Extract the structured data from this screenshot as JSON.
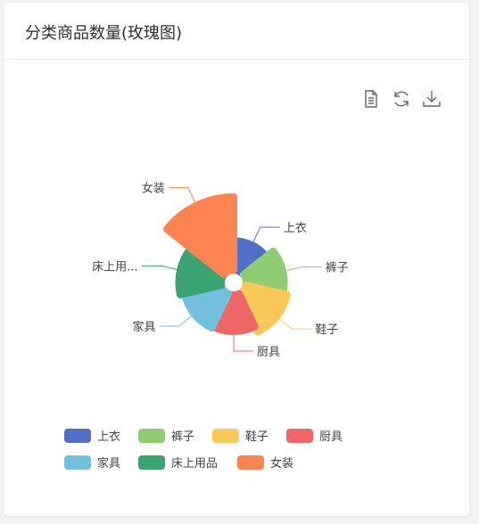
{
  "card": {
    "title": "分类商品数量(玫瑰图)"
  },
  "toolbox": [
    {
      "name": "data-view-icon",
      "title": ""
    },
    {
      "name": "restore-icon",
      "title": ""
    },
    {
      "name": "save-image-icon",
      "title": ""
    }
  ],
  "chart_data": {
    "type": "pie",
    "rose_type": "radius",
    "categories": [
      "上衣",
      "裤子",
      "鞋子",
      "厨具",
      "家具",
      "床上用品",
      "女装"
    ],
    "display_labels": [
      "上衣",
      "裤子",
      "鞋子",
      "厨具",
      "家具",
      "床上用...",
      "女装"
    ],
    "values": [
      40,
      52,
      58,
      50,
      52,
      58,
      100
    ],
    "colors": [
      "#5470c6",
      "#91cc75",
      "#fac858",
      "#ee6666",
      "#73c0de",
      "#3ba272",
      "#fc8452"
    ],
    "legend_position": "bottom"
  }
}
